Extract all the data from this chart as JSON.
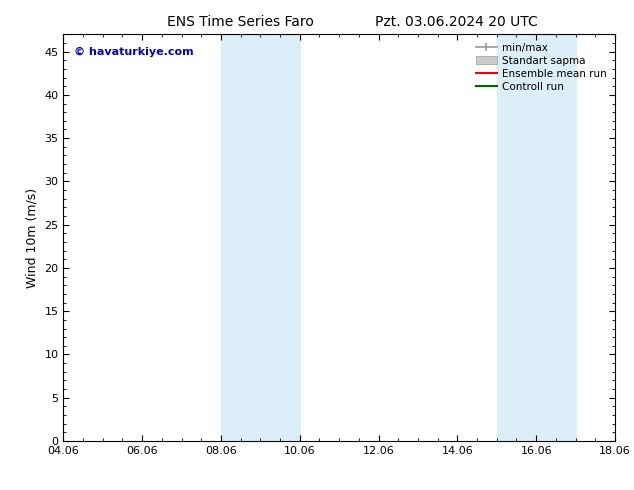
{
  "title_left": "ENS Time Series Faro",
  "title_right": "Pzt. 03.06.2024 20 UTC",
  "ylabel": "Wind 10m (m/s)",
  "ylim": [
    0,
    47
  ],
  "yticks": [
    0,
    5,
    10,
    15,
    20,
    25,
    30,
    35,
    40,
    45
  ],
  "xtick_labels": [
    "04.06",
    "06.06",
    "08.06",
    "10.06",
    "12.06",
    "14.06",
    "16.06",
    "18.06"
  ],
  "xtick_positions": [
    0,
    2,
    4,
    6,
    8,
    10,
    12,
    14
  ],
  "xlim": [
    0,
    14
  ],
  "shaded_regions": [
    {
      "x_start": 4,
      "x_end": 6
    },
    {
      "x_start": 11,
      "x_end": 13
    }
  ],
  "shaded_color": "#dceef8",
  "bg_color": "#ffffff",
  "plot_bg_color": "#ffffff",
  "watermark_text": "© havaturkiye.com",
  "watermark_color": "#0000cc",
  "legend_entries": [
    {
      "label": "min/max",
      "color": "#999999",
      "lw": 1.2,
      "type": "line_caps"
    },
    {
      "label": "Standart sapma",
      "color": "#cccccc",
      "lw": 8,
      "type": "bar"
    },
    {
      "label": "Ensemble mean run",
      "color": "#ff0000",
      "lw": 1.5,
      "type": "line"
    },
    {
      "label": "Controll run",
      "color": "#006600",
      "lw": 1.5,
      "type": "line"
    }
  ],
  "title_fontsize": 10,
  "axis_label_fontsize": 9,
  "tick_fontsize": 8,
  "legend_fontsize": 7.5
}
